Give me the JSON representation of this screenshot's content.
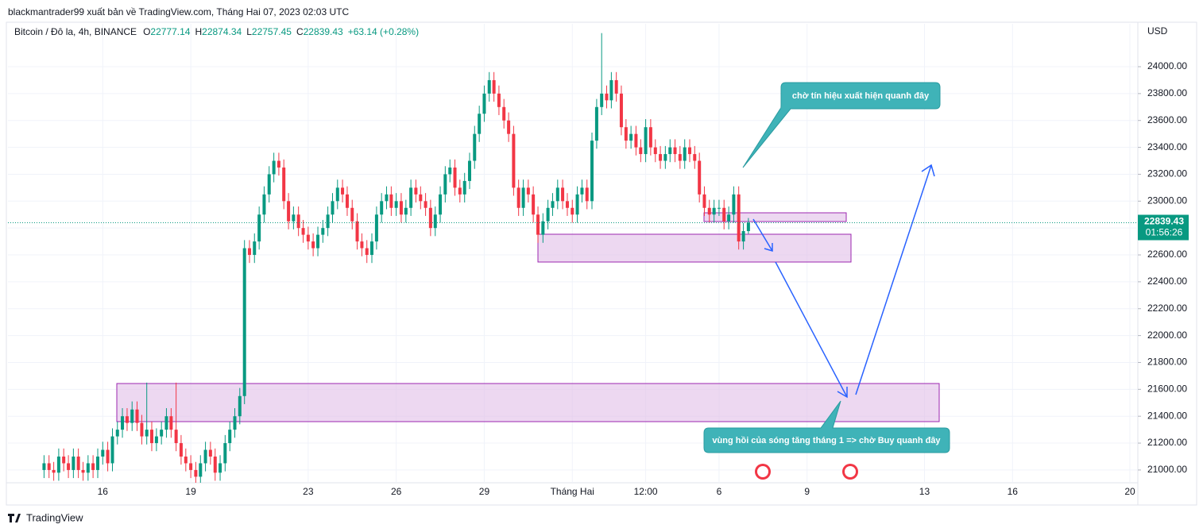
{
  "header": {
    "published": "blackmantrader99 xuất bản về TradingView.com, Tháng Hai 07, 2023 02:03 UTC",
    "symbol": "Bitcoin / Đô la, 4h, BINANCE",
    "o_label": "O",
    "o": "22777.14",
    "h_label": "H",
    "h": "22874.34",
    "l_label": "L",
    "l": "22757.45",
    "c_label": "C",
    "c": "22839.43",
    "change": "+63.14 (+0.28%)"
  },
  "annotations": [
    "chờ tín hiệu xuất hiện quanh đây",
    "vùng hồi của sóng tăng tháng 1 => chờ Buy quanh đây"
  ],
  "footer": "TradingView",
  "chart_data": {
    "type": "candlestick",
    "axis_unit": "USD",
    "last_price": 22839.43,
    "countdown": "01:56:26",
    "up_color": "#089981",
    "down_color": "#f23645",
    "grid": true,
    "xlim": [
      12.77,
      51.27
    ],
    "ylim": [
      20905,
      24319
    ],
    "xticks": [
      16,
      19,
      23,
      26,
      29,
      {
        "value": 32,
        "label": "Tháng Hai"
      },
      {
        "value": 34.5,
        "label": "12:00"
      },
      {
        "value": 37,
        "label": "6"
      },
      {
        "value": 40,
        "label": "9"
      },
      {
        "value": 44,
        "label": "13"
      },
      {
        "value": 47,
        "label": "16"
      },
      {
        "value": 51,
        "label": "20"
      }
    ],
    "yticks": [
      {
        "value": 21000,
        "label": "21000.00"
      },
      {
        "value": 21200,
        "label": "21200.00"
      },
      {
        "value": 21400,
        "label": "21400.00"
      },
      {
        "value": 21600,
        "label": "21600.00"
      },
      {
        "value": 21800,
        "label": "21800.00"
      },
      {
        "value": 22000,
        "label": "22000.00"
      },
      {
        "value": 22200,
        "label": "22200.00"
      },
      {
        "value": 22400,
        "label": "22400.00"
      },
      {
        "value": 22600,
        "label": "22600.00"
      },
      {
        "value": 22800,
        "label": "22800.00"
      },
      {
        "value": 23000,
        "label": "23000.00"
      },
      {
        "value": 23200,
        "label": "23200.00"
      },
      {
        "value": 23400,
        "label": "23400.00"
      },
      {
        "value": 23600,
        "label": "23600.00"
      },
      {
        "value": 23800,
        "label": "23800.00"
      },
      {
        "value": 24000,
        "label": "24000.00"
      }
    ],
    "x": [
      14,
      14.17,
      14.33,
      14.5,
      14.67,
      14.83,
      15,
      15.17,
      15.33,
      15.5,
      15.67,
      15.83,
      16,
      16.17,
      16.33,
      16.5,
      16.67,
      16.83,
      17,
      17.17,
      17.33,
      17.5,
      17.67,
      17.83,
      18,
      18.17,
      18.33,
      18.5,
      18.67,
      18.83,
      19,
      19.17,
      19.33,
      19.5,
      19.67,
      19.83,
      20,
      20.17,
      20.33,
      20.5,
      20.67,
      20.83,
      21,
      21.17,
      21.33,
      21.5,
      21.67,
      21.83,
      22,
      22.17,
      22.33,
      22.5,
      22.67,
      22.83,
      23,
      23.17,
      23.33,
      23.5,
      23.67,
      23.83,
      24,
      24.17,
      24.33,
      24.5,
      24.67,
      24.83,
      25,
      25.17,
      25.33,
      25.5,
      25.67,
      25.83,
      26,
      26.17,
      26.33,
      26.5,
      26.67,
      26.83,
      27,
      27.17,
      27.33,
      27.5,
      27.67,
      27.83,
      28,
      28.17,
      28.33,
      28.5,
      28.67,
      28.83,
      29,
      29.17,
      29.33,
      29.5,
      29.67,
      29.83,
      30,
      30.17,
      30.33,
      30.5,
      30.67,
      30.83,
      31,
      31.17,
      31.33,
      31.5,
      31.67,
      31.83,
      32,
      32.17,
      32.33,
      32.5,
      32.67,
      32.83,
      33,
      33.17,
      33.33,
      33.5,
      33.67,
      33.83,
      34,
      34.17,
      34.33,
      34.5,
      34.67,
      34.83,
      35,
      35.17,
      35.33,
      35.5,
      35.67,
      35.83,
      36,
      36.17,
      36.33,
      36.5,
      36.67,
      36.83,
      37,
      37.17,
      37.33,
      37.5,
      37.67,
      37.83,
      38
    ],
    "open": [
      21000,
      21050,
      21000,
      20980,
      21100,
      21050,
      21000,
      21100,
      21000,
      20980,
      21050,
      21000,
      21100,
      21150,
      21050,
      21250,
      21300,
      21400,
      21350,
      21450,
      21350,
      21250,
      21300,
      21200,
      21250,
      21300,
      21400,
      21300,
      21200,
      21100,
      21050,
      21000,
      20950,
      21050,
      21150,
      21100,
      20980,
      21050,
      21200,
      21300,
      21400,
      21550,
      22650,
      22600,
      22700,
      22900,
      23050,
      23200,
      23300,
      23250,
      23000,
      22850,
      22900,
      22800,
      22750,
      22700,
      22650,
      22750,
      22800,
      22900,
      23000,
      23100,
      23050,
      22950,
      22850,
      22700,
      22650,
      22600,
      22700,
      22900,
      23000,
      23050,
      22950,
      23000,
      22900,
      22950,
      23100,
      23050,
      23000,
      22950,
      22800,
      22900,
      23050,
      23200,
      23250,
      23100,
      23050,
      23150,
      23300,
      23500,
      23650,
      23800,
      23900,
      23800,
      23700,
      23600,
      23500,
      23100,
      22950,
      23100,
      23050,
      22900,
      22750,
      22850,
      22950,
      23000,
      23100,
      23000,
      22950,
      22900,
      23050,
      23100,
      23000,
      23450,
      23700,
      23800,
      23750,
      23900,
      23800,
      23550,
      23450,
      23500,
      23400,
      23350,
      23550,
      23400,
      23350,
      23300,
      23350,
      23400,
      23350,
      23300,
      23400,
      23350,
      23300,
      23050,
      22950,
      22900,
      22950,
      22950,
      22850,
      22900,
      23050,
      22700,
      22777.14
    ],
    "high": [
      21110,
      21110,
      21060,
      21160,
      21160,
      21110,
      21160,
      21160,
      21060,
      21110,
      21110,
      21160,
      21210,
      21210,
      21310,
      21360,
      21460,
      21460,
      21510,
      21510,
      21410,
      21650,
      21360,
      21310,
      21360,
      21460,
      21460,
      21650,
      21260,
      21160,
      21110,
      21060,
      21110,
      21210,
      21210,
      21160,
      21110,
      21260,
      21360,
      21460,
      21610,
      22710,
      22710,
      22760,
      22960,
      23110,
      23260,
      23360,
      23360,
      23310,
      23060,
      22960,
      22960,
      22860,
      22810,
      22760,
      22810,
      22860,
      22960,
      23060,
      23160,
      23160,
      23110,
      23010,
      22910,
      22760,
      22710,
      22760,
      22960,
      23060,
      23110,
      23110,
      23060,
      23060,
      23010,
      23160,
      23160,
      23110,
      23060,
      23010,
      22960,
      23110,
      23260,
      23310,
      23310,
      23160,
      23210,
      23360,
      23560,
      23710,
      23860,
      23960,
      23960,
      23860,
      23760,
      23660,
      23560,
      23160,
      23160,
      23160,
      23110,
      22960,
      22910,
      23010,
      23060,
      23160,
      23160,
      23060,
      23010,
      23110,
      23160,
      23160,
      23510,
      23760,
      24250,
      23860,
      23960,
      23960,
      23860,
      23610,
      23560,
      23560,
      23460,
      23610,
      23610,
      23460,
      23410,
      23410,
      23460,
      23460,
      23410,
      23460,
      23460,
      23410,
      23360,
      23110,
      23010,
      23010,
      23010,
      23010,
      22960,
      23110,
      23110,
      22837.14,
      22874.34
    ],
    "low": [
      20940,
      20940,
      20920,
      20920,
      20990,
      20940,
      20940,
      20940,
      20920,
      20920,
      20940,
      20940,
      21040,
      20990,
      20990,
      21190,
      21240,
      21290,
      21290,
      21290,
      21190,
      21190,
      21140,
      21140,
      21190,
      21240,
      21240,
      21140,
      21040,
      20990,
      20940,
      20890,
      20890,
      20990,
      21040,
      20920,
      20920,
      20990,
      21140,
      21240,
      21340,
      21490,
      22540,
      22540,
      22640,
      22840,
      22990,
      23140,
      23190,
      22940,
      22790,
      22790,
      22740,
      22690,
      22640,
      22590,
      22590,
      22690,
      22740,
      22840,
      22940,
      22990,
      22890,
      22790,
      22640,
      22590,
      22540,
      22540,
      22640,
      22840,
      22940,
      22890,
      22890,
      22840,
      22840,
      22890,
      22990,
      22940,
      22890,
      22740,
      22740,
      22840,
      22990,
      23140,
      23040,
      22990,
      22990,
      23090,
      23240,
      23440,
      23590,
      23740,
      23740,
      23640,
      23540,
      23440,
      23040,
      22890,
      22890,
      22990,
      22840,
      22690,
      22690,
      22790,
      22890,
      22940,
      22940,
      22890,
      22840,
      22840,
      22990,
      22940,
      22940,
      23390,
      23640,
      23690,
      23690,
      23740,
      23490,
      23390,
      23390,
      23340,
      23290,
      23290,
      23340,
      23290,
      23240,
      23240,
      23290,
      23290,
      23240,
      23240,
      23290,
      23240,
      22990,
      22890,
      22840,
      22840,
      22890,
      22790,
      22790,
      22840,
      22640,
      22640,
      22757.45
    ],
    "close": [
      21050,
      21000,
      20980,
      21100,
      21050,
      21000,
      21100,
      21000,
      20980,
      21050,
      21000,
      21100,
      21150,
      21050,
      21250,
      21300,
      21400,
      21350,
      21450,
      21350,
      21250,
      21300,
      21200,
      21250,
      21300,
      21400,
      21300,
      21200,
      21100,
      21050,
      21000,
      20950,
      21050,
      21150,
      21100,
      20980,
      21050,
      21200,
      21300,
      21400,
      21550,
      22650,
      22600,
      22700,
      22900,
      23050,
      23200,
      23300,
      23250,
      23000,
      22850,
      22900,
      22800,
      22750,
      22700,
      22650,
      22750,
      22800,
      22900,
      23000,
      23100,
      23050,
      22950,
      22850,
      22700,
      22650,
      22600,
      22700,
      22900,
      23000,
      23050,
      22950,
      23000,
      22900,
      22950,
      23100,
      23050,
      23000,
      22950,
      22800,
      22900,
      23050,
      23200,
      23250,
      23100,
      23050,
      23150,
      23300,
      23500,
      23650,
      23800,
      23900,
      23800,
      23700,
      23600,
      23500,
      23100,
      22950,
      23100,
      23050,
      22900,
      22750,
      22850,
      22950,
      23000,
      23100,
      23000,
      22950,
      22900,
      23050,
      23100,
      23000,
      23450,
      23700,
      23800,
      23750,
      23900,
      23800,
      23550,
      23450,
      23500,
      23400,
      23350,
      23550,
      23400,
      23350,
      23300,
      23350,
      23400,
      23350,
      23300,
      23400,
      23350,
      23300,
      23050,
      22950,
      22900,
      22950,
      22950,
      22850,
      22900,
      23050,
      22700,
      22777.14,
      22839.43
    ]
  }
}
